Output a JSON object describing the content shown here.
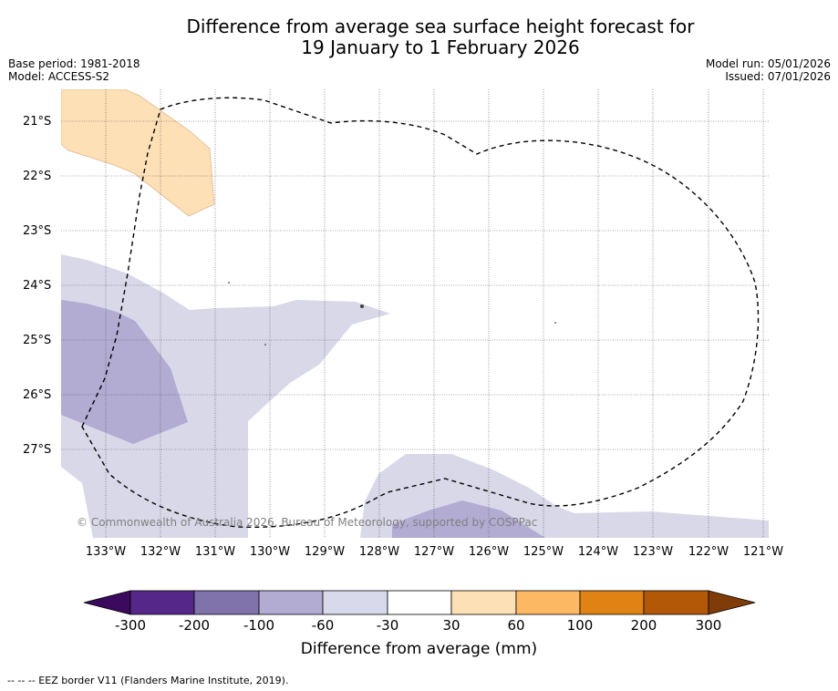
{
  "title": {
    "line1": "Difference from average sea surface height forecast for",
    "line2": "19 January to 1 February 2026"
  },
  "info": {
    "base_period": "Base period: 1981-2018",
    "model": "Model: ACCESS-S2",
    "model_run": "Model run: 05/01/2026",
    "issued": "Issued: 07/01/2026"
  },
  "map": {
    "latitude_labels": [
      "21°S",
      "22°S",
      "23°S",
      "24°S",
      "25°S",
      "26°S",
      "27°S"
    ],
    "longitude_labels": [
      "133°W",
      "132°W",
      "131°W",
      "130°W",
      "129°W",
      "128°W",
      "127°W",
      "126°W",
      "125°W",
      "124°W",
      "123°W",
      "122°W",
      "121°W"
    ],
    "lat_range": [
      -28.6,
      -20.4
    ],
    "lon_range": [
      -133.8,
      -120.9
    ],
    "copyright": "© Commonwealth of Australia 2026, Bureau of Meteorology, supported by COSPPac",
    "region_colors": {
      "pos_30_60": "#fee0b6",
      "neg_30_60": "#d8d8e9",
      "neg_60_100": "#b2abd2",
      "eez_border": "#000000"
    }
  },
  "colorbar": {
    "label": "Difference from average (mm)",
    "ticks": [
      "-300",
      "-200",
      "-100",
      "-60",
      "-30",
      "30",
      "60",
      "100",
      "200",
      "300"
    ],
    "colors": [
      "#3b0a5e",
      "#542788",
      "#8073ac",
      "#b2abd2",
      "#d8daeb",
      "#ffffff",
      "#fee0b6",
      "#fdb863",
      "#e08214",
      "#b35806",
      "#7f3b08"
    ]
  },
  "footer": {
    "legend_text": "--  --  -- EEZ border V11 (Flanders Marine Institute, 2019)."
  }
}
